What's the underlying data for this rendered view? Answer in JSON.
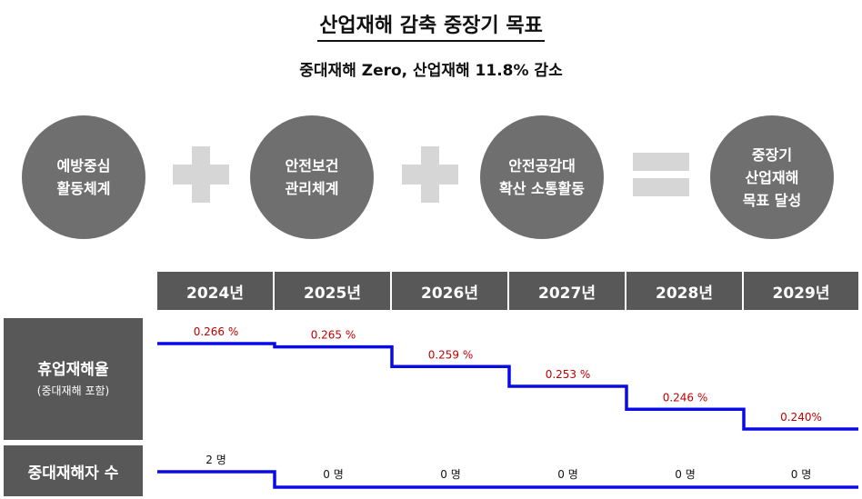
{
  "title": "산업재해 감축 중장기 목표",
  "subtitle": "중대재해 Zero, 산업재해 11.8% 감소",
  "pillars": [
    {
      "line1": "예방중심",
      "line2": "활동체계"
    },
    {
      "line1": "안전보건",
      "line2": "관리체계"
    },
    {
      "line1": "안전공감대",
      "line2": "확산 소통활동"
    }
  ],
  "goal": {
    "line1": "중장기",
    "line2": "산업재해",
    "line3": "목표 달성"
  },
  "operators": {
    "plus": "plus-icon",
    "equals": "equals-icon"
  },
  "rows": {
    "rate_label": "휴업재해율",
    "rate_sublabel": "(중대재해 포함)",
    "deaths_label": "중대재해자 수"
  },
  "chart_data": {
    "type": "line",
    "step": true,
    "categories": [
      "2024년",
      "2025년",
      "2026년",
      "2027년",
      "2028년",
      "2029년"
    ],
    "series": [
      {
        "name": "휴업재해율",
        "values": [
          0.266,
          0.265,
          0.259,
          0.253,
          0.246,
          0.24
        ],
        "labels": [
          "0.266 %",
          "0.265 %",
          "0.259 %",
          "0.253 %",
          "0.246 %",
          "0.240%"
        ]
      },
      {
        "name": "중대재해자 수",
        "values": [
          2,
          0,
          0,
          0,
          0,
          0
        ],
        "labels": [
          "2 명",
          "0 명",
          "0 명",
          "0 명",
          "0 명",
          "0 명"
        ]
      }
    ],
    "colors": {
      "line": "#0a0ae6",
      "rate_label": "#c00000",
      "count_label": "#111111",
      "header_bg": "#585858",
      "circle_bg": "#6f6f6f",
      "operator": "#d6d6d6"
    }
  }
}
